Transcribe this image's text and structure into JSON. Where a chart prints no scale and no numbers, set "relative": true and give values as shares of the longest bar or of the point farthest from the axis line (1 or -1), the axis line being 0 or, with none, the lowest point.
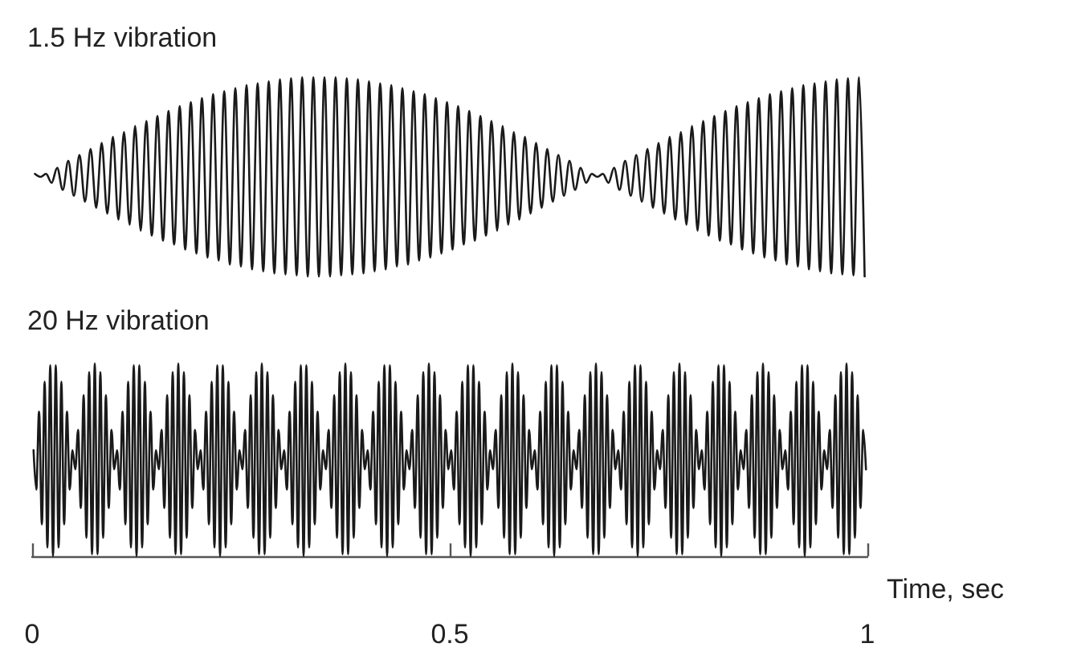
{
  "chart_data": [
    {
      "type": "line",
      "title": "1.5 Hz vibration",
      "relative": true,
      "xlim": [
        0,
        1
      ],
      "tick_labels": false,
      "series": [
        {
          "color": "#1a1a1a",
          "x": [
            0.0033,
            0.01,
            0.0167,
            0.0233,
            0.03,
            0.0367,
            0.0433,
            0.05,
            0.0567,
            0.0633,
            0.07,
            0.0767,
            0.0833,
            0.09,
            0.0967,
            0.1033,
            0.11,
            0.1167,
            0.1233,
            0.13,
            0.1367,
            0.1433,
            0.15,
            0.1567,
            0.1633,
            0.17,
            0.1767,
            0.1833,
            0.19,
            0.1967,
            0.2033,
            0.21,
            0.2167,
            0.2233,
            0.23,
            0.2367,
            0.2433,
            0.25,
            0.2567,
            0.2633,
            0.27,
            0.2767,
            0.2833,
            0.29,
            0.2967,
            0.3033,
            0.31,
            0.3167,
            0.3233,
            0.33,
            0.3367,
            0.3433,
            0.35,
            0.3567,
            0.3633,
            0.37,
            0.3767,
            0.3833,
            0.39,
            0.3967,
            0.4033,
            0.41,
            0.4167,
            0.4233,
            0.43,
            0.4367,
            0.4433,
            0.45,
            0.4567,
            0.4633,
            0.47,
            0.4767,
            0.4833,
            0.49,
            0.4967,
            0.5033,
            0.51,
            0.5167,
            0.5233,
            0.53,
            0.5367,
            0.5433,
            0.55,
            0.5567,
            0.5633,
            0.57,
            0.5767,
            0.5833,
            0.59,
            0.5967,
            0.6033,
            0.61,
            0.6167,
            0.6233,
            0.63,
            0.6367,
            0.6433,
            0.65,
            0.6567,
            0.6633,
            0.67,
            0.6767,
            0.6833,
            0.69,
            0.6967,
            0.7033,
            0.71,
            0.7167,
            0.7233,
            0.73,
            0.7367,
            0.7433,
            0.75,
            0.7567,
            0.7633,
            0.77,
            0.7767,
            0.7833,
            0.79,
            0.7967,
            0.8033,
            0.81,
            0.8167,
            0.8233,
            0.83,
            0.8367,
            0.8433,
            0.85,
            0.8567,
            0.8633,
            0.87,
            0.8767,
            0.8833,
            0.89,
            0.8967,
            0.9033,
            0.91,
            0.9167,
            0.9233,
            0.93,
            0.9367,
            0.9433,
            0.95,
            0.9567,
            0.9633,
            0.97,
            0.9767,
            0.9833,
            0.99,
            0.9967
          ],
          "values": [
            0.515,
            0.5,
            0.515,
            0.47,
            0.545,
            0.435,
            0.58,
            0.405,
            0.61,
            0.375,
            0.64,
            0.345,
            0.67,
            0.315,
            0.7,
            0.285,
            0.725,
            0.26,
            0.755,
            0.23,
            0.78,
            0.205,
            0.805,
            0.18,
            0.83,
            0.16,
            0.855,
            0.135,
            0.875,
            0.115,
            0.895,
            0.095,
            0.915,
            0.08,
            0.93,
            0.06,
            0.945,
            0.05,
            0.96,
            0.035,
            0.97,
            0.025,
            0.98,
            0.015,
            0.99,
            0.01,
            0.995,
            0.005,
            1,
            0,
            1,
            0,
            1,
            0,
            1,
            0.005,
            0.995,
            0.01,
            0.99,
            0.015,
            0.98,
            0.025,
            0.97,
            0.035,
            0.96,
            0.05,
            0.945,
            0.06,
            0.93,
            0.08,
            0.915,
            0.095,
            0.895,
            0.115,
            0.875,
            0.135,
            0.855,
            0.16,
            0.83,
            0.18,
            0.805,
            0.205,
            0.78,
            0.23,
            0.755,
            0.26,
            0.725,
            0.285,
            0.7,
            0.315,
            0.67,
            0.345,
            0.64,
            0.375,
            0.61,
            0.405,
            0.58,
            0.435,
            0.545,
            0.47,
            0.515,
            0.5,
            0.515,
            0.47,
            0.545,
            0.435,
            0.58,
            0.405,
            0.61,
            0.375,
            0.64,
            0.345,
            0.67,
            0.315,
            0.7,
            0.285,
            0.725,
            0.26,
            0.755,
            0.23,
            0.78,
            0.205,
            0.805,
            0.18,
            0.83,
            0.16,
            0.855,
            0.135,
            0.875,
            0.115,
            0.895,
            0.095,
            0.915,
            0.08,
            0.93,
            0.06,
            0.945,
            0.05,
            0.96,
            0.035,
            0.97,
            0.025,
            0.98,
            0.015,
            0.99,
            0.01,
            0.995,
            0.005,
            1,
            0
          ]
        }
      ]
    },
    {
      "type": "line",
      "title": "20 Hz vibration",
      "relative": true,
      "xlim": [
        0,
        1
      ],
      "xticks": [
        0,
        0.5,
        1
      ],
      "xlabel": "Time, sec",
      "tick_labels": "x",
      "series": [
        {
          "color": "#1a1a1a",
          "x": [
            0.0017,
            0.005,
            0.0083,
            0.0117,
            0.015,
            0.0183,
            0.0217,
            0.025,
            0.0283,
            0.0317,
            0.035,
            0.0383,
            0.0417,
            0.045,
            0.0483,
            0.0517,
            0.055,
            0.0583,
            0.0617,
            0.065,
            0.0683,
            0.0717,
            0.075,
            0.0783,
            0.0817,
            0.085,
            0.0883,
            0.0917,
            0.095,
            0.0983,
            0.1017,
            0.105,
            0.1083,
            0.1117,
            0.115,
            0.1183,
            0.1217,
            0.125,
            0.1283,
            0.1317,
            0.135,
            0.1383,
            0.1417,
            0.145,
            0.1483,
            0.1517,
            0.155,
            0.1583,
            0.1617,
            0.165,
            0.1683,
            0.1717,
            0.175,
            0.1783,
            0.1817,
            0.185,
            0.1883,
            0.1917,
            0.195,
            0.1983,
            0.2017,
            0.205,
            0.2083,
            0.2117,
            0.215,
            0.2183,
            0.2217,
            0.225,
            0.2283,
            0.2317,
            0.235,
            0.2383,
            0.2417,
            0.245,
            0.2483,
            0.2517,
            0.255,
            0.2583,
            0.2617,
            0.265,
            0.2683,
            0.2717,
            0.275,
            0.2783,
            0.2817,
            0.285,
            0.2883,
            0.2917,
            0.295,
            0.2983,
            0.3017,
            0.305,
            0.3083,
            0.3117,
            0.315,
            0.3183,
            0.3217,
            0.325,
            0.3283,
            0.3317,
            0.335,
            0.3383,
            0.3417,
            0.345,
            0.3483,
            0.3517,
            0.355,
            0.3583,
            0.3617,
            0.365,
            0.3683,
            0.3717,
            0.375,
            0.3783,
            0.3817,
            0.385,
            0.3883,
            0.3917,
            0.395,
            0.3983,
            0.4017,
            0.405,
            0.4083,
            0.4117,
            0.415,
            0.4183,
            0.4217,
            0.425,
            0.4283,
            0.4317,
            0.435,
            0.4383,
            0.4417,
            0.445,
            0.4483,
            0.4517,
            0.455,
            0.4583,
            0.4617,
            0.465,
            0.4683,
            0.4717,
            0.475,
            0.4783,
            0.4817,
            0.485,
            0.4883,
            0.4917,
            0.495,
            0.4983,
            0.5017,
            0.505,
            0.5083,
            0.5117,
            0.515,
            0.5183,
            0.5217,
            0.525,
            0.5283,
            0.5317,
            0.535,
            0.5383,
            0.5417,
            0.545,
            0.5483,
            0.5517,
            0.555,
            0.5583,
            0.5617,
            0.565,
            0.5683,
            0.5717,
            0.575,
            0.5783,
            0.5817,
            0.585,
            0.5883,
            0.5917,
            0.595,
            0.5983,
            0.6017,
            0.605,
            0.6083,
            0.6117,
            0.615,
            0.6183,
            0.6217,
            0.625,
            0.6283,
            0.6317,
            0.635,
            0.6383,
            0.6417,
            0.645,
            0.6483,
            0.6517,
            0.655,
            0.6583,
            0.6617,
            0.665,
            0.6683,
            0.6717,
            0.675,
            0.6783,
            0.6817,
            0.685,
            0.6883,
            0.6917,
            0.695,
            0.6983,
            0.7017,
            0.705,
            0.7083,
            0.7117,
            0.715,
            0.7183,
            0.7217,
            0.725,
            0.7283,
            0.7317,
            0.735,
            0.7383,
            0.7417,
            0.745,
            0.7483,
            0.7517,
            0.755,
            0.7583,
            0.7617,
            0.765,
            0.7683,
            0.7717,
            0.775,
            0.7783,
            0.7817,
            0.785,
            0.7883,
            0.7917,
            0.795,
            0.7983,
            0.8017,
            0.805,
            0.8083,
            0.8117,
            0.815,
            0.8183,
            0.8217,
            0.825,
            0.8283,
            0.8317,
            0.835,
            0.8383,
            0.8417,
            0.845,
            0.8483,
            0.8517,
            0.855,
            0.8583,
            0.8617,
            0.865,
            0.8683,
            0.8717,
            0.875,
            0.8783,
            0.8817,
            0.885,
            0.8883,
            0.8917,
            0.895,
            0.8983,
            0.9017,
            0.905,
            0.9083,
            0.9117,
            0.915,
            0.9183,
            0.9217,
            0.925,
            0.9283,
            0.9317,
            0.935,
            0.9383,
            0.9417,
            0.945,
            0.9483,
            0.9517,
            0.955,
            0.9583,
            0.9617,
            0.965,
            0.9683,
            0.9717,
            0.975,
            0.9783,
            0.9817,
            0.985,
            0.9883,
            0.9917,
            0.995,
            0.9983
          ],
          "values": [
            0.55,
            0.345,
            0.75,
            0.165,
            0.905,
            0.045,
            0.99,
            0,
            0.99,
            0.045,
            0.905,
            0.165,
            0.75,
            0.345,
            0.55,
            0.45,
            0.655,
            0.25,
            0.835,
            0.095,
            0.955,
            0.01,
            1,
            0.01,
            0.955,
            0.095,
            0.835,
            0.25,
            0.655,
            0.45,
            0.55,
            0.345,
            0.75,
            0.165,
            0.905,
            0.045,
            0.99,
            0,
            0.99,
            0.045,
            0.905,
            0.165,
            0.75,
            0.345,
            0.55,
            0.45,
            0.655,
            0.25,
            0.835,
            0.095,
            0.955,
            0.01,
            1,
            0.01,
            0.955,
            0.095,
            0.835,
            0.25,
            0.655,
            0.45,
            0.55,
            0.345,
            0.75,
            0.165,
            0.905,
            0.045,
            0.99,
            0,
            0.99,
            0.045,
            0.905,
            0.165,
            0.75,
            0.345,
            0.55,
            0.45,
            0.655,
            0.25,
            0.835,
            0.095,
            0.955,
            0.01,
            1,
            0.01,
            0.955,
            0.095,
            0.835,
            0.25,
            0.655,
            0.45,
            0.55,
            0.345,
            0.75,
            0.165,
            0.905,
            0.045,
            0.99,
            0,
            0.99,
            0.045,
            0.905,
            0.165,
            0.75,
            0.345,
            0.55,
            0.45,
            0.655,
            0.25,
            0.835,
            0.095,
            0.955,
            0.01,
            1,
            0.01,
            0.955,
            0.095,
            0.835,
            0.25,
            0.655,
            0.45,
            0.55,
            0.345,
            0.75,
            0.165,
            0.905,
            0.045,
            0.99,
            0,
            0.99,
            0.045,
            0.905,
            0.165,
            0.75,
            0.345,
            0.55,
            0.45,
            0.655,
            0.25,
            0.835,
            0.095,
            0.955,
            0.01,
            1,
            0.01,
            0.955,
            0.095,
            0.835,
            0.25,
            0.655,
            0.45,
            0.55,
            0.345,
            0.75,
            0.165,
            0.905,
            0.045,
            0.99,
            0,
            0.99,
            0.045,
            0.905,
            0.165,
            0.75,
            0.345,
            0.55,
            0.45,
            0.655,
            0.25,
            0.835,
            0.095,
            0.955,
            0.01,
            1,
            0.01,
            0.955,
            0.095,
            0.835,
            0.25,
            0.655,
            0.45,
            0.55,
            0.345,
            0.75,
            0.165,
            0.905,
            0.045,
            0.99,
            0,
            0.99,
            0.045,
            0.905,
            0.165,
            0.75,
            0.345,
            0.55,
            0.45,
            0.655,
            0.25,
            0.835,
            0.095,
            0.955,
            0.01,
            1,
            0.01,
            0.955,
            0.095,
            0.835,
            0.25,
            0.655,
            0.45,
            0.55,
            0.345,
            0.75,
            0.165,
            0.905,
            0.045,
            0.99,
            0,
            0.99,
            0.045,
            0.905,
            0.165,
            0.75,
            0.345,
            0.55,
            0.45,
            0.655,
            0.25,
            0.835,
            0.095,
            0.955,
            0.01,
            1,
            0.01,
            0.955,
            0.095,
            0.835,
            0.25,
            0.655,
            0.45,
            0.55,
            0.345,
            0.75,
            0.165,
            0.905,
            0.045,
            0.99,
            0,
            0.99,
            0.045,
            0.905,
            0.165,
            0.75,
            0.345,
            0.55,
            0.45,
            0.655,
            0.25,
            0.835,
            0.095,
            0.955,
            0.01,
            1,
            0.01,
            0.955,
            0.095,
            0.835,
            0.25,
            0.655,
            0.45,
            0.55,
            0.345,
            0.75,
            0.165,
            0.905,
            0.045,
            0.99,
            0,
            0.99,
            0.045,
            0.905,
            0.165,
            0.75,
            0.345,
            0.55,
            0.45,
            0.655,
            0.25,
            0.835,
            0.095,
            0.955,
            0.01,
            1,
            0.01,
            0.955,
            0.095,
            0.835,
            0.25,
            0.655,
            0.45
          ]
        }
      ]
    }
  ]
}
